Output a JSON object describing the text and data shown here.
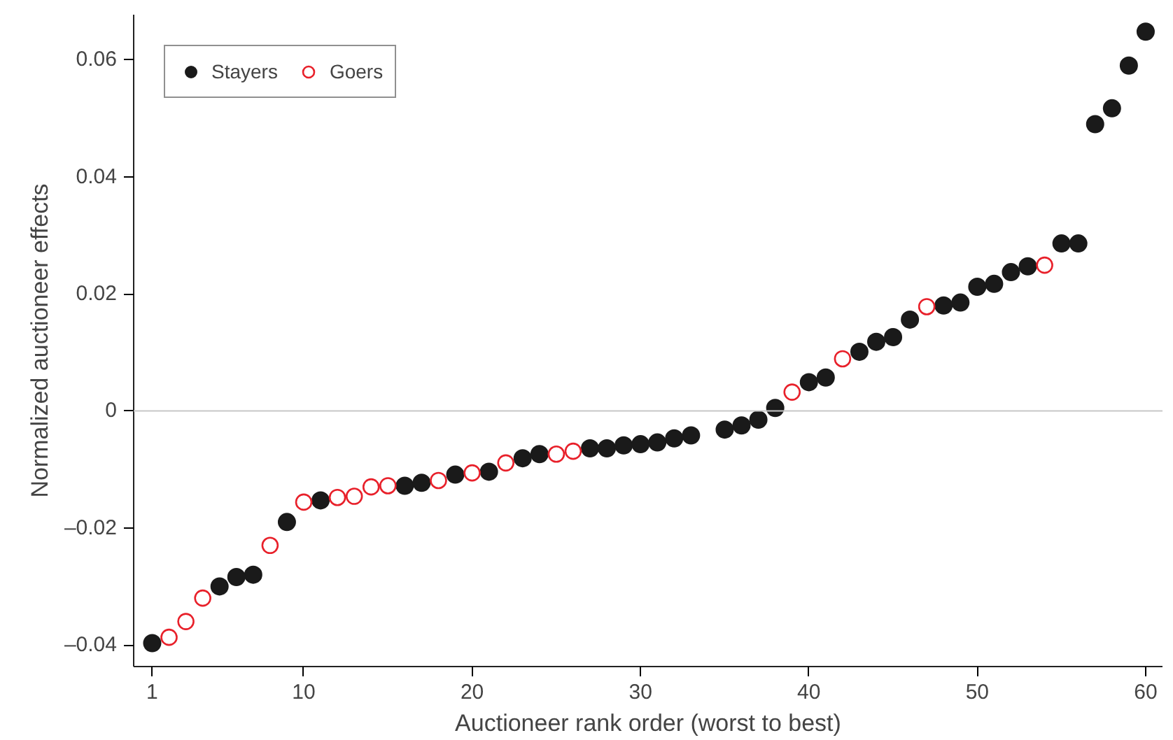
{
  "chart_data": {
    "type": "scatter",
    "xlabel": "Auctioneer rank order (worst to best)",
    "ylabel": "Normalized auctioneer effects",
    "series": [
      {
        "name": "Stayers",
        "color": "#1a1a1a",
        "marker": "circle",
        "x": [
          1,
          5,
          6,
          7,
          9,
          11,
          16,
          17,
          19,
          21,
          23,
          24,
          27,
          28,
          29,
          30,
          31,
          32,
          33,
          35,
          36,
          37,
          38,
          40,
          41,
          43,
          44,
          45,
          46,
          48,
          49,
          50,
          51,
          52,
          53,
          55,
          56,
          57,
          58,
          59,
          60
        ],
        "values": [
          -0.0397,
          -0.03,
          -0.0284,
          -0.028,
          -0.019,
          -0.0153,
          -0.0128,
          -0.0123,
          -0.0109,
          -0.0104,
          -0.0081,
          -0.0074,
          -0.0064,
          -0.0064,
          -0.0059,
          -0.0057,
          -0.0054,
          -0.0047,
          -0.0042,
          -0.0032,
          -0.0025,
          -0.0015,
          0.0005,
          0.0049,
          0.0057,
          0.0101,
          0.0118,
          0.0126,
          0.0156,
          0.018,
          0.0185,
          0.0212,
          0.0217,
          0.0237,
          0.0247,
          0.0286,
          0.0286,
          0.049,
          0.0517,
          0.059,
          0.0648
        ]
      },
      {
        "name": "Goers",
        "color": "#e8202a",
        "marker": "open_circle",
        "x": [
          2,
          3,
          4,
          8,
          10,
          12,
          13,
          14,
          15,
          18,
          20,
          22,
          25,
          26,
          39,
          42,
          47,
          54
        ],
        "values": [
          -0.0387,
          -0.036,
          -0.032,
          -0.023,
          -0.0156,
          -0.0148,
          -0.0146,
          -0.013,
          -0.0128,
          -0.0119,
          -0.0106,
          -0.0089,
          -0.0074,
          -0.0069,
          0.0032,
          0.0089,
          0.0178,
          0.0249
        ]
      }
    ],
    "xlim": [
      -0.1,
      61
    ],
    "ylim": [
      -0.0437,
      0.0677
    ],
    "xticks": [
      1,
      10,
      20,
      30,
      40,
      50,
      60
    ],
    "yticks": [
      {
        "value": -0.04,
        "label": "–0.04"
      },
      {
        "value": -0.02,
        "label": "–0.02"
      },
      {
        "value": 0,
        "label": "0"
      },
      {
        "value": 0.02,
        "label": "0.02"
      },
      {
        "value": 0.04,
        "label": "0.04"
      },
      {
        "value": 0.06,
        "label": "0.06"
      }
    ],
    "ref_lines": [
      {
        "axis": "y",
        "value": 0,
        "color": "#c8c8c8"
      }
    ],
    "grid": false,
    "legend": "top left"
  }
}
